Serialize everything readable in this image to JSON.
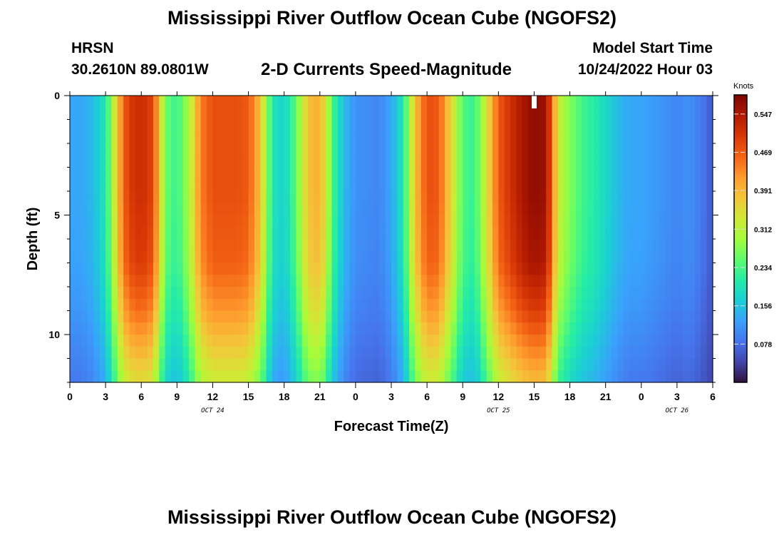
{
  "header": {
    "title": "Mississippi River Outflow Ocean Cube (NGOFS2)",
    "station": "HRSN",
    "coords": "30.2610N  89.0801W",
    "plot_title": "2-D Currents Speed-Magnitude",
    "model_start_label": "Model Start Time",
    "model_start_value": "10/24/2022 Hour 03"
  },
  "footer": {
    "title": "Mississippi River Outflow Ocean Cube (NGOFS2)"
  },
  "chart_data": {
    "type": "heatmap",
    "xlabel": "Forecast Time(Z)",
    "ylabel": "Depth (ft)",
    "x_range_hours": [
      0,
      54
    ],
    "ylim": [
      0,
      12
    ],
    "y_inverted": true,
    "x_tick_labels": [
      "0",
      "3",
      "6",
      "9",
      "12",
      "15",
      "18",
      "21",
      "0",
      "3",
      "6",
      "9",
      "12",
      "15",
      "18",
      "21",
      "0",
      "3",
      "6"
    ],
    "y_tick_labels": [
      "0",
      "5",
      "10"
    ],
    "date_labels": [
      {
        "label": "OCT 24",
        "hour": 12
      },
      {
        "label": "OCT 25",
        "hour": 36
      },
      {
        "label": "OCT 26",
        "hour": 51
      }
    ],
    "colorbar": {
      "title": "Knots",
      "min": 0.0,
      "max": 0.586,
      "ticks": [
        "0.547",
        "0.469",
        "0.391",
        "0.312",
        "0.234",
        "0.156",
        "0.078"
      ],
      "colors": [
        "#30123b",
        "#4145ab",
        "#4675ed",
        "#39a2fc",
        "#1bcfd4",
        "#24eca6",
        "#61fc6c",
        "#a4fc3b",
        "#d1e834",
        "#f3c63a",
        "#fe9b2d",
        "#f36315",
        "#d93806",
        "#b11901",
        "#7a0402"
      ]
    },
    "surface_speed_by_hour": [
      [
        0,
        0.13
      ],
      [
        1,
        0.13
      ],
      [
        2,
        0.15
      ],
      [
        3,
        0.2
      ],
      [
        3.5,
        0.28
      ],
      [
        4,
        0.38
      ],
      [
        4.5,
        0.46
      ],
      [
        5,
        0.5
      ],
      [
        6,
        0.52
      ],
      [
        7,
        0.49
      ],
      [
        7.5,
        0.38
      ],
      [
        8,
        0.26
      ],
      [
        9,
        0.22
      ],
      [
        10,
        0.3
      ],
      [
        11,
        0.44
      ],
      [
        12,
        0.48
      ],
      [
        14,
        0.48
      ],
      [
        15,
        0.47
      ],
      [
        16,
        0.38
      ],
      [
        17,
        0.2
      ],
      [
        18,
        0.17
      ],
      [
        19,
        0.25
      ],
      [
        20,
        0.38
      ],
      [
        21,
        0.4
      ],
      [
        21.5,
        0.34
      ],
      [
        22,
        0.24
      ],
      [
        23,
        0.15
      ],
      [
        24,
        0.11
      ],
      [
        26,
        0.1
      ],
      [
        27,
        0.13
      ],
      [
        28,
        0.2
      ],
      [
        29,
        0.38
      ],
      [
        30,
        0.48
      ],
      [
        31,
        0.47
      ],
      [
        32,
        0.36
      ],
      [
        33,
        0.24
      ],
      [
        34,
        0.22
      ],
      [
        35,
        0.34
      ],
      [
        36,
        0.47
      ],
      [
        37,
        0.51
      ],
      [
        38,
        0.55
      ],
      [
        39,
        0.57
      ],
      [
        40,
        0.56
      ],
      [
        40.5,
        0.46
      ],
      [
        41,
        0.33
      ],
      [
        42,
        0.27
      ],
      [
        43,
        0.23
      ],
      [
        44,
        0.21
      ],
      [
        45,
        0.18
      ],
      [
        46,
        0.15
      ],
      [
        47,
        0.13
      ],
      [
        48,
        0.13
      ],
      [
        49,
        0.12
      ],
      [
        50,
        0.11
      ],
      [
        51,
        0.1
      ],
      [
        52,
        0.11
      ],
      [
        53,
        0.09
      ],
      [
        54,
        0.06
      ]
    ],
    "depth_factor_by_ft": [
      [
        0,
        1.0
      ],
      [
        4,
        1.0
      ],
      [
        7,
        0.97
      ],
      [
        9,
        0.88
      ],
      [
        12,
        0.68
      ]
    ]
  }
}
